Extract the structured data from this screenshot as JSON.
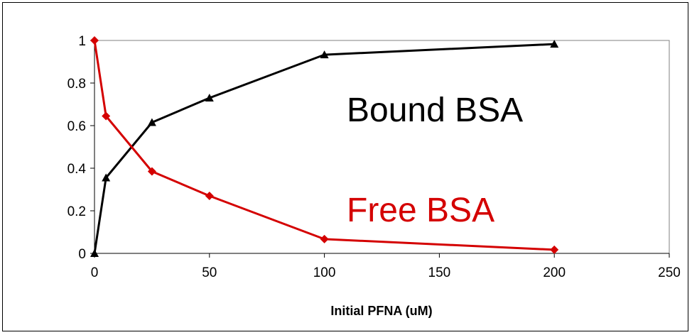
{
  "chart_data": {
    "type": "line",
    "title": "",
    "xlabel": "Initial PFNA (uM)",
    "ylabel": "",
    "xlim": [
      0,
      250
    ],
    "ylim": [
      0,
      1
    ],
    "x_ticks": [
      0,
      50,
      100,
      150,
      200,
      250
    ],
    "y_ticks": [
      0,
      0.2,
      0.4,
      0.6,
      0.8,
      1
    ],
    "grid": false,
    "legend": "none",
    "series": [
      {
        "color": "#000000",
        "marker": "triangle",
        "x": [
          0,
          5,
          25,
          50,
          100,
          200
        ],
        "y": [
          0,
          0.355,
          0.615,
          0.73,
          0.933,
          0.983
        ]
      },
      {
        "color": "#d40000",
        "marker": "diamond",
        "x": [
          0,
          5,
          25,
          50,
          100,
          200
        ],
        "y": [
          1,
          0.645,
          0.385,
          0.27,
          0.067,
          0.017
        ]
      }
    ],
    "annotations": [
      {
        "text": "Bound BSA",
        "color": "#000000"
      },
      {
        "text": "Free BSA",
        "color": "#d40000"
      }
    ]
  }
}
